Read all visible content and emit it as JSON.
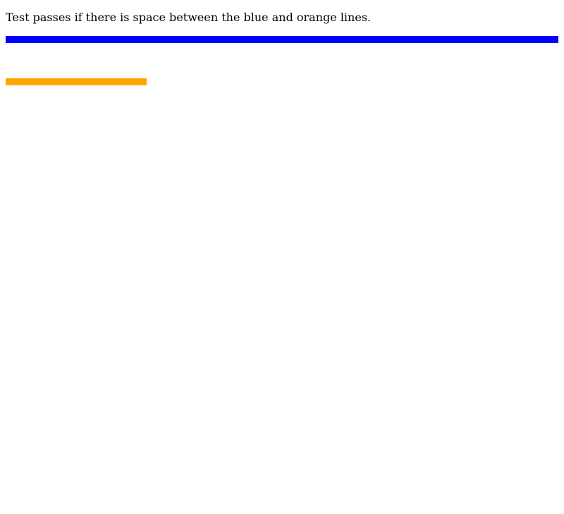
{
  "instruction": {
    "text": "Test passes if there is space between the blue and orange lines."
  },
  "lines": {
    "blue": {
      "color": "#0000ff"
    },
    "orange": {
      "color": "#ffa500"
    }
  }
}
